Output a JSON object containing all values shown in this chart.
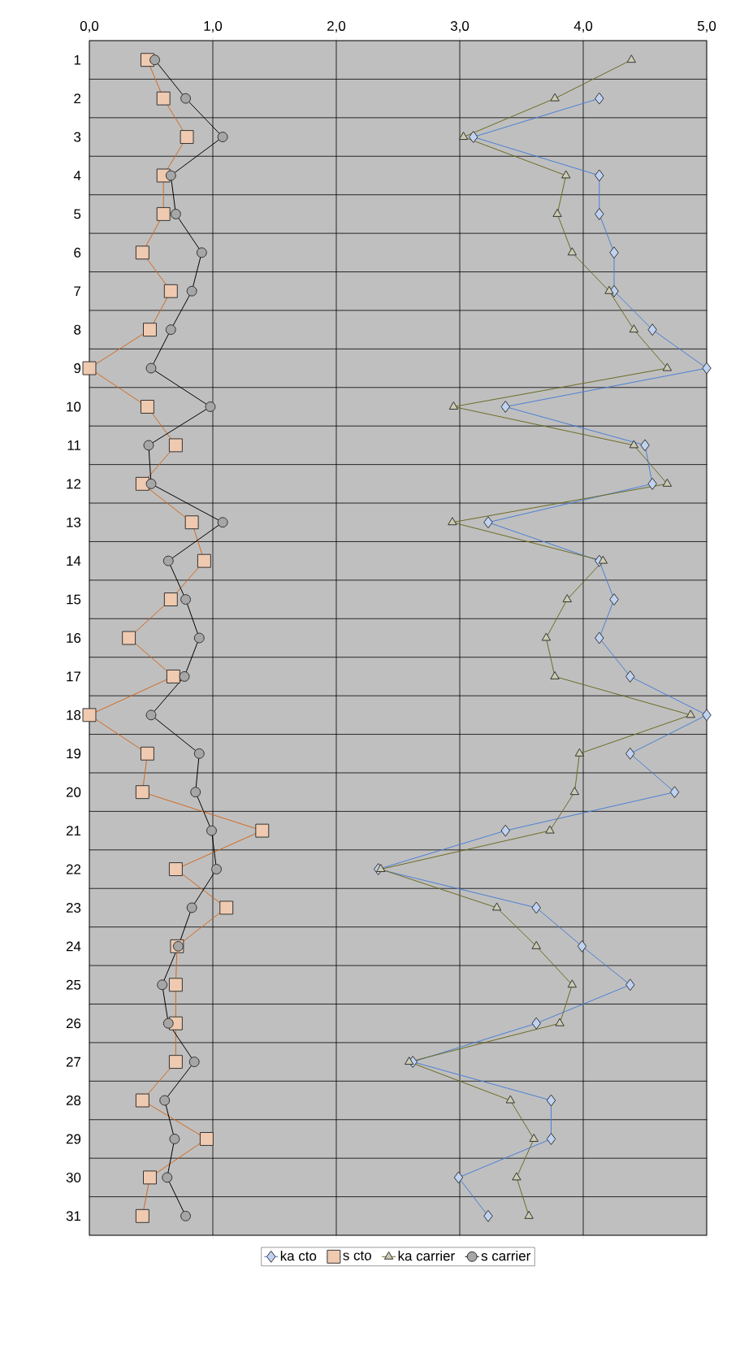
{
  "chart_data": {
    "type": "line",
    "orientation": "horizontal",
    "categories": [
      "1",
      "2",
      "3",
      "4",
      "5",
      "6",
      "7",
      "8",
      "9",
      "10",
      "11",
      "12",
      "13",
      "14",
      "15",
      "16",
      "17",
      "18",
      "19",
      "20",
      "21",
      "22",
      "23",
      "24",
      "25",
      "26",
      "27",
      "28",
      "29",
      "30",
      "31"
    ],
    "series": [
      {
        "name": "ka cto",
        "color": "#4a7fd6",
        "marker": "diamond",
        "values": [
          null,
          4.13,
          3.11,
          4.13,
          4.13,
          4.25,
          4.25,
          4.56,
          5.0,
          3.37,
          4.5,
          4.56,
          3.23,
          4.13,
          4.25,
          4.13,
          4.38,
          5.0,
          4.38,
          4.74,
          3.37,
          2.34,
          3.62,
          3.99,
          4.38,
          3.62,
          2.62,
          3.74,
          3.74,
          2.99,
          3.23
        ]
      },
      {
        "name": "s cto",
        "color": "#d2691e",
        "marker": "square",
        "values": [
          0.47,
          0.6,
          0.79,
          0.6,
          0.6,
          0.43,
          0.66,
          0.49,
          0.0,
          0.47,
          0.7,
          0.43,
          0.83,
          0.93,
          0.66,
          0.32,
          0.68,
          0.0,
          0.47,
          0.43,
          1.4,
          0.7,
          1.11,
          0.71,
          0.7,
          0.7,
          0.7,
          0.43,
          0.95,
          0.49,
          0.43
        ]
      },
      {
        "name": "ka carrier",
        "color": "#6b6b24",
        "marker": "triangle",
        "values": [
          4.39,
          3.77,
          3.03,
          3.86,
          3.79,
          3.91,
          4.21,
          4.41,
          4.68,
          2.95,
          4.41,
          4.68,
          2.94,
          4.16,
          3.87,
          3.7,
          3.77,
          4.87,
          3.97,
          3.93,
          3.73,
          2.36,
          3.3,
          3.62,
          3.91,
          3.81,
          2.59,
          3.41,
          3.6,
          3.46,
          3.56
        ]
      },
      {
        "name": "s carrier",
        "color": "#000000",
        "marker": "circle",
        "values": [
          0.53,
          0.78,
          1.08,
          0.66,
          0.7,
          0.91,
          0.83,
          0.66,
          0.5,
          0.98,
          0.48,
          0.5,
          1.08,
          0.64,
          0.78,
          0.89,
          0.77,
          0.5,
          0.89,
          0.86,
          0.99,
          1.03,
          0.83,
          0.72,
          0.59,
          0.64,
          0.85,
          0.61,
          0.69,
          0.63,
          0.78
        ]
      }
    ],
    "xlim": [
      0,
      5
    ],
    "xticks": [
      {
        "value": 0,
        "label": "0,0"
      },
      {
        "value": 1,
        "label": "1,0"
      },
      {
        "value": 2,
        "label": "2,0"
      },
      {
        "value": 3,
        "label": "3,0"
      },
      {
        "value": 4,
        "label": "4,0"
      },
      {
        "value": 5,
        "label": "5,0"
      }
    ],
    "grid": true,
    "legend": "bottom"
  }
}
